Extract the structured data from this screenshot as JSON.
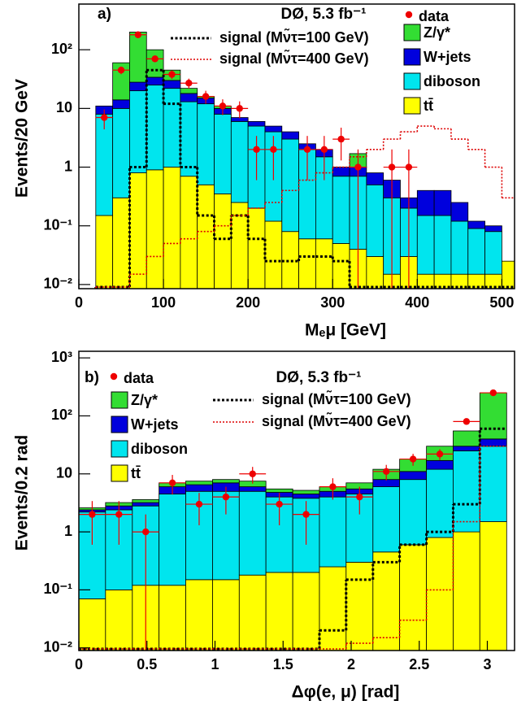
{
  "chart_data": [
    {
      "type": "histogram",
      "panel_label": "a)",
      "title": "DØ, 5.3 fb⁻¹",
      "xlabel": "Mₑμ [GeV]",
      "ylabel": "Events/20 GeV",
      "bins": [
        20,
        40,
        60,
        80,
        100,
        120,
        140,
        160,
        180,
        200,
        220,
        240,
        260,
        280,
        300,
        320,
        340,
        360,
        380,
        400,
        420,
        440,
        460,
        480,
        500,
        520
      ],
      "stacked_series": [
        {
          "name": "tt̄",
          "color": "#ffff00",
          "values": [
            0.15,
            0.3,
            0.8,
            0.9,
            1.0,
            0.7,
            0.5,
            0.35,
            0.25,
            0.2,
            0.12,
            0.08,
            0.06,
            0.06,
            0.05,
            0.04,
            0.03,
            0.015,
            0.03,
            0.015,
            0.015,
            0.015,
            0.015,
            0.015,
            0.025
          ]
        },
        {
          "name": "diboson",
          "color": "#00e5ee",
          "values": [
            7.85,
            9.7,
            19.2,
            24.1,
            21,
            12.3,
            11.5,
            7.65,
            5.75,
            4.8,
            3.88,
            2.92,
            1.94,
            1.44,
            0.65,
            0.66,
            0.47,
            0.285,
            0.17,
            0.135,
            0.135,
            0.105,
            0.075,
            0.065,
            0
          ]
        },
        {
          "name": "W+jets",
          "color": "#0000dd",
          "values": [
            3,
            4,
            8,
            9,
            8,
            5,
            3,
            2,
            1,
            1,
            1,
            1,
            0.5,
            0.5,
            0.3,
            0.3,
            0.3,
            0.3,
            0.1,
            0.25,
            0.25,
            0.13,
            0.03,
            0.02,
            0
          ]
        },
        {
          "name": "Z/γ*",
          "color": "#33dd33",
          "values": [
            0,
            46,
            172,
            66,
            15,
            4,
            1,
            1,
            0,
            0,
            0,
            0,
            0,
            0,
            0,
            0.7,
            0,
            0,
            0,
            0,
            0,
            0,
            0,
            0,
            0
          ]
        }
      ],
      "overlay_series": [
        {
          "name": "signal (Mν̃τ=100 GeV)",
          "color": "#000000",
          "values": [
            null,
            null,
            1,
            45,
            12,
            1,
            0.15,
            0.06,
            0.15,
            0.06,
            0.025,
            0.025,
            0.03,
            0.03,
            0.025,
            null,
            null,
            null,
            null,
            null,
            null,
            null,
            null,
            null,
            null
          ]
        },
        {
          "name": "signal (Mν̃τ=400 GeV)",
          "color": "#dd0000",
          "values": [
            null,
            null,
            0.015,
            0.03,
            0.05,
            0.06,
            0.08,
            0.1,
            0.15,
            0.2,
            0.25,
            0.4,
            0.6,
            0.8,
            1,
            1.5,
            2,
            3,
            4,
            5,
            4.5,
            3,
            2,
            1,
            0.3
          ]
        }
      ],
      "data": {
        "name": "data",
        "color": "#ee0000",
        "values": [
          7,
          45,
          180,
          70,
          38,
          27,
          16,
          11,
          10,
          2,
          2,
          null,
          2,
          2,
          3,
          1,
          null,
          1,
          1,
          null,
          null,
          null,
          null,
          null,
          null
        ],
        "errors": [
          2.6,
          6.7,
          13,
          8.4,
          6.2,
          5.2,
          4,
          3.3,
          3.2,
          1.4,
          1.4,
          null,
          1.4,
          1.4,
          1.7,
          1,
          null,
          1,
          1,
          null,
          null,
          null,
          null,
          null,
          null
        ]
      },
      "xlim": [
        0,
        515
      ],
      "xticks": [
        0,
        100,
        200,
        300,
        400,
        500
      ],
      "ylim": [
        0.0085,
        600
      ],
      "log_y": true,
      "yticks": [
        {
          "value": 0.01,
          "label": "10⁻²"
        },
        {
          "value": 0.1,
          "label": "10⁻¹"
        },
        1,
        10,
        {
          "value": 100,
          "label": "10²"
        }
      ]
    },
    {
      "type": "histogram",
      "panel_label": "b)",
      "title": "DØ, 5.3 fb⁻¹",
      "xlabel": "Δφ(e, μ) [rad]",
      "ylabel": "Events/0.2 rad",
      "bins": [
        0,
        0.196,
        0.393,
        0.589,
        0.785,
        0.982,
        1.178,
        1.374,
        1.571,
        1.767,
        1.963,
        2.16,
        2.356,
        2.553,
        2.749,
        2.945,
        3.142
      ],
      "stacked_series": [
        {
          "name": "tt̄",
          "color": "#ffff00",
          "values": [
            0.07,
            0.1,
            0.12,
            0.12,
            0.15,
            0.15,
            0.18,
            0.2,
            0.2,
            0.25,
            0.3,
            0.45,
            0.6,
            0.8,
            1,
            1.5
          ]
        },
        {
          "name": "diboson",
          "color": "#00e5ee",
          "values": [
            2.13,
            2.3,
            2.68,
            4.38,
            4.85,
            4.85,
            4.82,
            3.8,
            3.6,
            3.75,
            4.2,
            5.55,
            7.4,
            11.2,
            24,
            28.5
          ]
        },
        {
          "name": "W+jets",
          "color": "#0000dd",
          "values": [
            0.2,
            0.4,
            0.4,
            1.5,
            1.5,
            2,
            1,
            0.8,
            0.7,
            1,
            1,
            2,
            3,
            5,
            5,
            10
          ]
        },
        {
          "name": "Z/γ*",
          "color": "#33dd33",
          "values": [
            0.2,
            0.4,
            0.4,
            1,
            1,
            1,
            1.5,
            0.7,
            0.7,
            1,
            1.5,
            4,
            7,
            13,
            25,
            210
          ]
        }
      ],
      "overlay_series": [
        {
          "name": "signal (Mν̃τ=100 GeV)",
          "color": "#000000",
          "values": [
            null,
            null,
            null,
            null,
            null,
            null,
            null,
            null,
            null,
            0.02,
            0.15,
            0.3,
            0.6,
            1,
            3,
            60
          ]
        },
        {
          "name": "signal (Mν̃τ=400 GeV)",
          "color": "#dd0000",
          "values": [
            null,
            null,
            null,
            null,
            null,
            null,
            null,
            null,
            null,
            null,
            0.012,
            0.015,
            0.03,
            0.1,
            1.5,
            30
          ]
        }
      ],
      "data": {
        "name": "data",
        "color": "#ee0000",
        "values": [
          2,
          2,
          1,
          7,
          3,
          4,
          10,
          3,
          2,
          6,
          4,
          11,
          18,
          22,
          80,
          250
        ],
        "errors": [
          1.4,
          1.4,
          1,
          2.6,
          1.7,
          2,
          3.2,
          1.7,
          1.4,
          2.4,
          2,
          3.3,
          4.2,
          4.7,
          8.9,
          15.8
        ]
      },
      "xlim": [
        0,
        3.2
      ],
      "xticks": [
        0,
        0.5,
        1,
        1.5,
        2,
        2.5,
        3
      ],
      "ylim": [
        0.009,
        1300
      ],
      "log_y": true,
      "yticks": [
        {
          "value": 0.01,
          "label": "10⁻²"
        },
        {
          "value": 0.1,
          "label": "10⁻¹"
        },
        1,
        10,
        {
          "value": 100,
          "label": "10²"
        },
        {
          "value": 1000,
          "label": "10³"
        }
      ]
    }
  ]
}
